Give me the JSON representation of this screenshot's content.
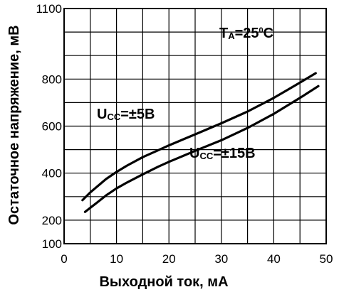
{
  "chart_data": {
    "type": "line",
    "title": "",
    "xlabel": "Выходной ток, мА",
    "ylabel": "Остаточное напряжение, мВ",
    "xlim": [
      0,
      50
    ],
    "ylim": [
      100,
      1100
    ],
    "xticks": [
      0,
      10,
      20,
      30,
      40,
      50
    ],
    "yticks": [
      100,
      200,
      400,
      600,
      800,
      1100
    ],
    "x_grid": [
      0,
      5,
      10,
      15,
      20,
      25,
      30,
      35,
      40,
      45,
      50
    ],
    "y_grid": [
      100,
      200,
      300,
      400,
      500,
      600,
      700,
      800,
      900,
      1000,
      1100
    ],
    "grid": true,
    "series": [
      {
        "name": "Ucc=±5В",
        "label": {
          "main": "U",
          "sub": "CC",
          "rest": "=±5В"
        },
        "x": [
          3.5,
          5,
          8,
          10,
          12,
          15,
          18,
          20,
          25,
          30,
          35,
          40,
          45,
          48
        ],
        "y": [
          285,
          318,
          375,
          405,
          432,
          468,
          498,
          518,
          565,
          612,
          662,
          720,
          785,
          825
        ]
      },
      {
        "name": "Ucc=±15В",
        "label": {
          "main": "U",
          "sub": "CC",
          "rest": "=±15В"
        },
        "x": [
          4,
          6,
          8,
          10,
          12,
          15,
          18,
          20,
          25,
          30,
          35,
          40,
          45,
          48.5
        ],
        "y": [
          235,
          270,
          305,
          335,
          360,
          395,
          428,
          448,
          495,
          540,
          592,
          652,
          720,
          770
        ]
      }
    ],
    "annotations": [
      {
        "main": "T",
        "sub": "A",
        "rest_a": "=25",
        "sup": "0",
        "rest_b": "C"
      }
    ]
  }
}
